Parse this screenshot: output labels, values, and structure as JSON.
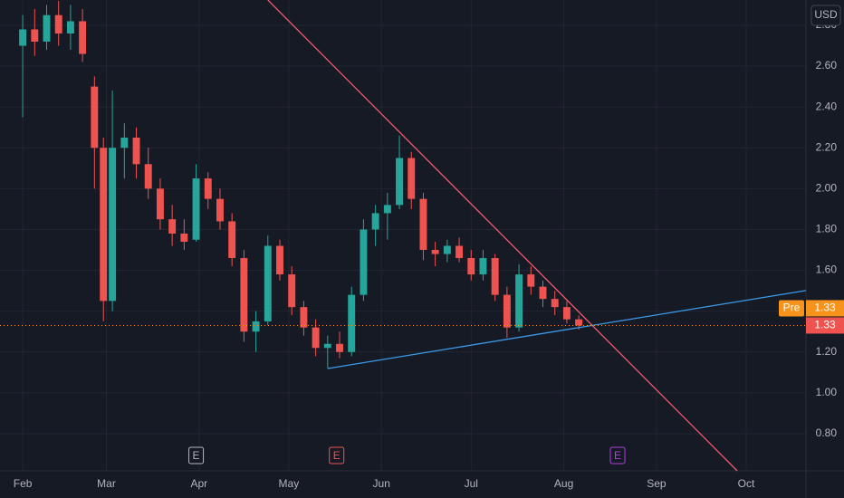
{
  "chart_data": {
    "type": "candlestick",
    "currency": "USD",
    "x": [
      0,
      4,
      8,
      12,
      16,
      20,
      24,
      27,
      30,
      34,
      38,
      42,
      46,
      50,
      54,
      58,
      62,
      66,
      70,
      74,
      78,
      82,
      86,
      90,
      94,
      98,
      102,
      106,
      110,
      114,
      118,
      122,
      126,
      130,
      134,
      138,
      142,
      146,
      150,
      154,
      158,
      162,
      166,
      170,
      174,
      178,
      182,
      186
    ],
    "open": [
      2.7,
      2.78,
      2.72,
      2.85,
      2.76,
      2.82,
      2.5,
      2.2,
      1.45,
      2.2,
      2.25,
      2.12,
      2.0,
      1.85,
      1.78,
      1.75,
      2.05,
      1.95,
      1.84,
      1.66,
      1.3,
      1.35,
      1.72,
      1.58,
      1.42,
      1.32,
      1.22,
      1.24,
      1.2,
      1.48,
      1.8,
      1.88,
      1.92,
      2.15,
      1.95,
      1.7,
      1.68,
      1.72,
      1.66,
      1.58,
      1.66,
      1.48,
      1.32,
      1.58,
      1.52,
      1.46,
      1.42,
      1.36
    ],
    "high": [
      2.85,
      2.88,
      2.9,
      2.92,
      2.9,
      2.88,
      2.55,
      2.25,
      2.48,
      2.32,
      2.3,
      2.2,
      2.05,
      1.92,
      1.85,
      2.12,
      2.08,
      2.0,
      1.88,
      1.7,
      1.4,
      1.77,
      1.75,
      1.62,
      1.45,
      1.36,
      1.28,
      1.3,
      1.52,
      1.85,
      1.92,
      1.98,
      2.26,
      2.18,
      1.98,
      1.74,
      1.75,
      1.76,
      1.7,
      1.7,
      1.68,
      1.52,
      1.63,
      1.62,
      1.55,
      1.5,
      1.45,
      1.38
    ],
    "low": [
      2.35,
      2.65,
      2.68,
      2.7,
      2.68,
      2.62,
      2.0,
      1.35,
      1.4,
      2.05,
      2.05,
      1.95,
      1.8,
      1.72,
      1.7,
      1.74,
      1.9,
      1.8,
      1.62,
      1.25,
      1.2,
      1.33,
      1.55,
      1.38,
      1.28,
      1.18,
      1.12,
      1.17,
      1.18,
      1.45,
      1.72,
      1.75,
      1.9,
      1.9,
      1.65,
      1.62,
      1.64,
      1.64,
      1.55,
      1.55,
      1.45,
      1.27,
      1.3,
      1.48,
      1.42,
      1.38,
      1.34,
      1.31
    ],
    "close": [
      2.78,
      2.72,
      2.85,
      2.76,
      2.82,
      2.66,
      2.2,
      1.45,
      2.2,
      2.25,
      2.12,
      2.0,
      1.85,
      1.78,
      1.74,
      2.05,
      1.95,
      1.84,
      1.66,
      1.3,
      1.35,
      1.72,
      1.58,
      1.42,
      1.32,
      1.22,
      1.24,
      1.2,
      1.48,
      1.8,
      1.88,
      1.92,
      2.15,
      1.95,
      1.7,
      1.68,
      1.72,
      1.66,
      1.58,
      1.66,
      1.48,
      1.32,
      1.58,
      1.52,
      1.46,
      1.42,
      1.36,
      1.33
    ],
    "up_color": "#26a69a",
    "down_color": "#ef5350",
    "xlim": [
      -7.6,
      262
    ],
    "xticks": [
      {
        "value": 0,
        "label": "Feb"
      },
      {
        "value": 28,
        "label": "Mar"
      },
      {
        "value": 59,
        "label": "Apr"
      },
      {
        "value": 89,
        "label": "May"
      },
      {
        "value": 120,
        "label": "Jun"
      },
      {
        "value": 150,
        "label": "Jul"
      },
      {
        "value": 181,
        "label": "Aug"
      },
      {
        "value": 212,
        "label": "Sep"
      },
      {
        "value": 242,
        "label": "Oct"
      }
    ],
    "ylim": [
      0.618,
      2.924
    ],
    "yticks": [
      {
        "value": 0.8,
        "label": "0.80"
      },
      {
        "value": 1.0,
        "label": "1.00"
      },
      {
        "value": 1.2,
        "label": "1.20"
      },
      {
        "value": 1.4,
        "label": "1.40"
      },
      {
        "value": 1.6,
        "label": "1.60"
      },
      {
        "value": 1.8,
        "label": "1.80"
      },
      {
        "value": 2.0,
        "label": "2.00"
      },
      {
        "value": 2.2,
        "label": "2.20"
      },
      {
        "value": 2.4,
        "label": "2.40"
      },
      {
        "value": 2.6,
        "label": "2.60"
      },
      {
        "value": 2.8,
        "label": "2.80"
      }
    ],
    "grid": true,
    "trendlines": [
      {
        "color": "#f05a6e",
        "x": [
          82,
          239
        ],
        "y": [
          2.924,
          0.618
        ]
      },
      {
        "color": "#3d9be9",
        "x": [
          102,
          262
        ],
        "y": [
          1.119,
          1.501
        ]
      }
    ],
    "last_price": 1.33,
    "premarket_label": "Pre",
    "premarket_price": 1.33,
    "events": [
      {
        "label": "E",
        "x": 58,
        "color": "#b2b5be"
      },
      {
        "label": "E",
        "x": 105,
        "color": "#ef5350"
      },
      {
        "label": "E",
        "x": 199,
        "color": "#b03ee0"
      }
    ]
  }
}
